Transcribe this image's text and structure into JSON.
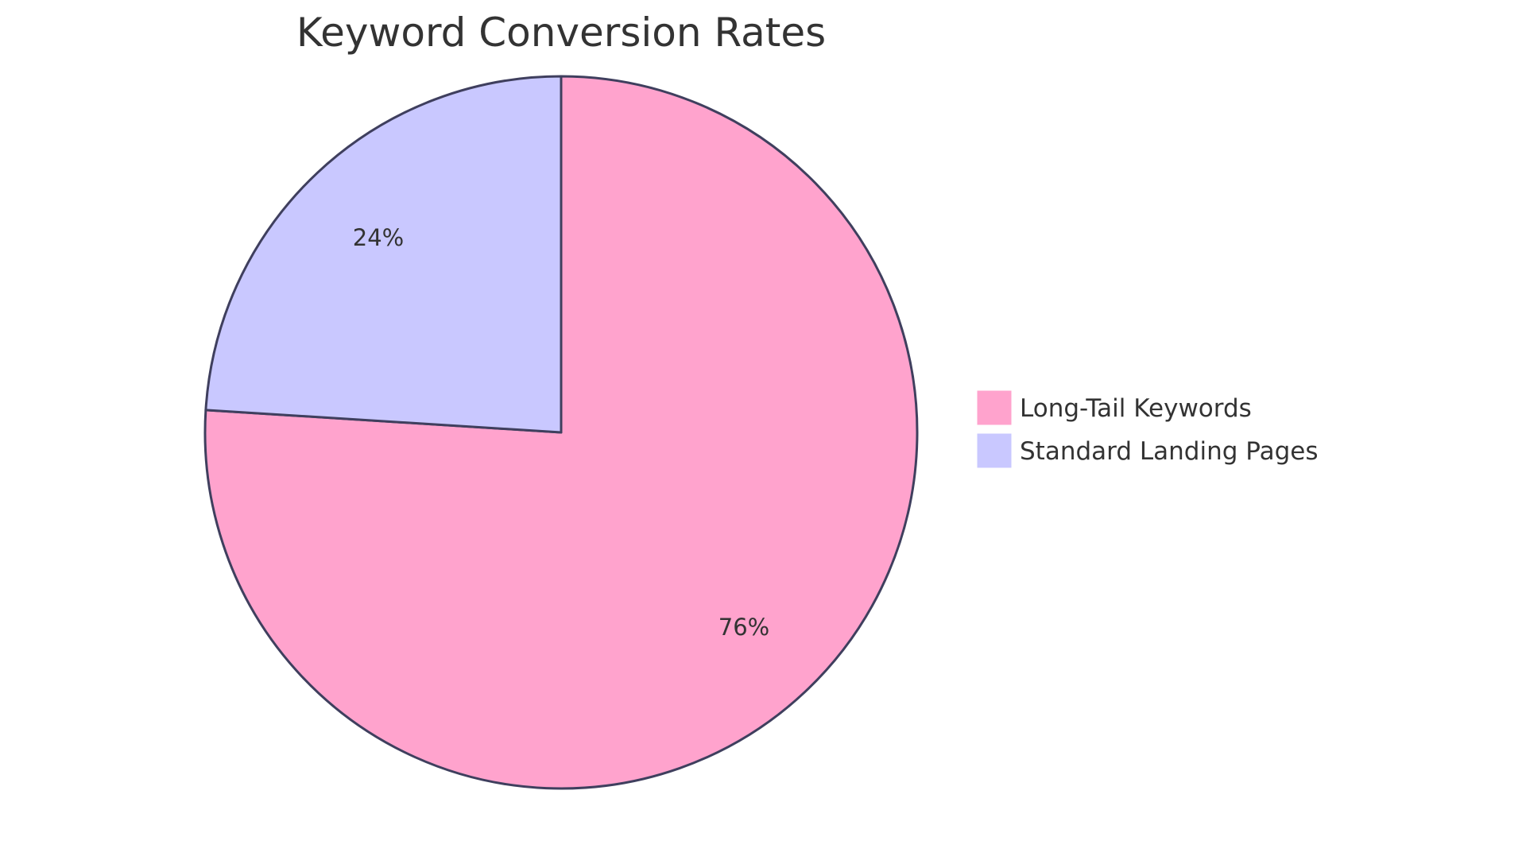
{
  "chart_data": {
    "type": "pie",
    "title": "Keyword Conversion Rates",
    "slices": [
      {
        "label": "Long-Tail Keywords",
        "value": 76,
        "display": "76%",
        "color": "#FFA3CD"
      },
      {
        "label": "Standard Landing Pages",
        "value": 24,
        "display": "24%",
        "color": "#C9C8FF"
      }
    ],
    "start_angle_deg": 0,
    "direction": "clockwise",
    "stroke_color": "#3F3F5E",
    "legend_position": "right"
  }
}
